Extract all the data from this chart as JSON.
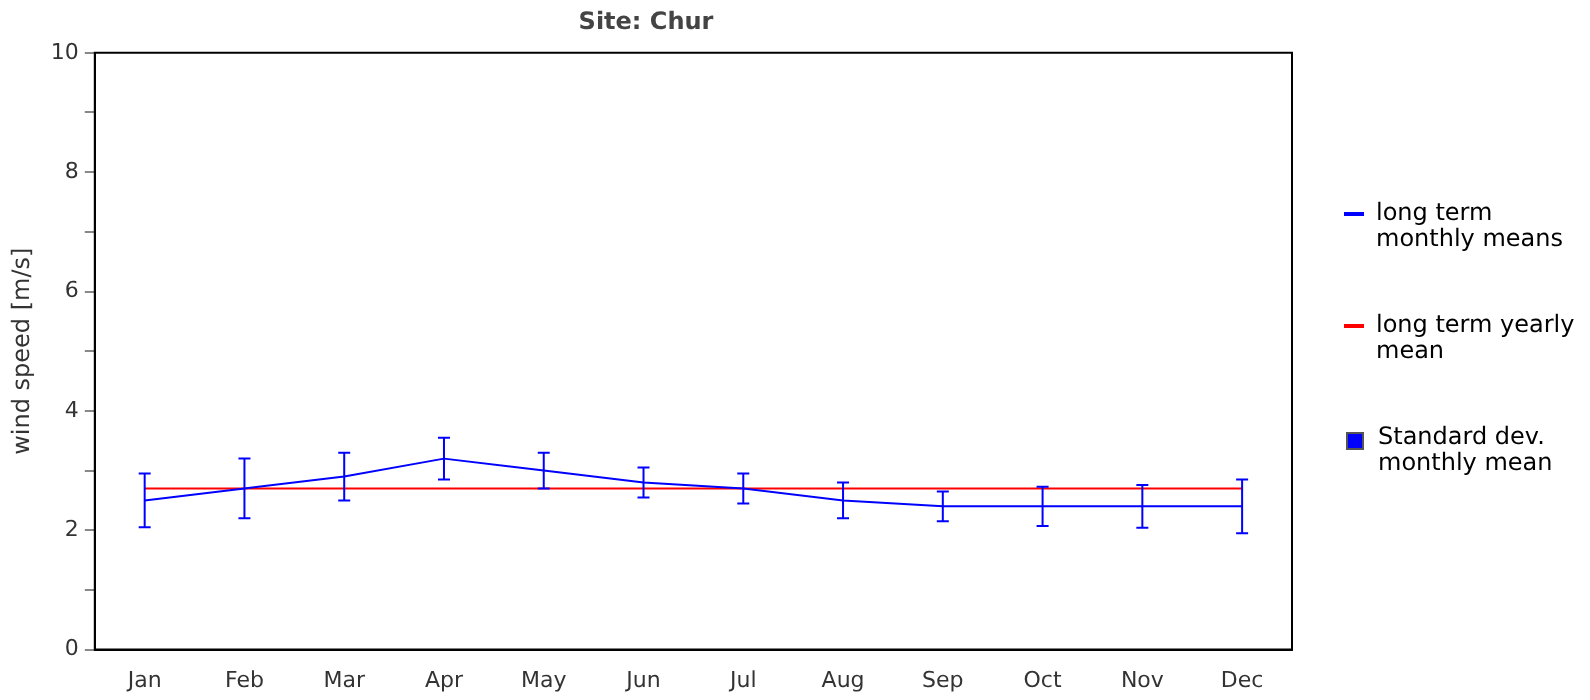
{
  "chart_data": {
    "type": "line",
    "title": "Site: Chur",
    "ylabel": "wind speed [m/s]",
    "categories": [
      "Jan",
      "Feb",
      "Mar",
      "Apr",
      "May",
      "Jun",
      "Jul",
      "Aug",
      "Sep",
      "Oct",
      "Nov",
      "Dec"
    ],
    "series": [
      {
        "name": "long term monthly means",
        "color": "#0000ff",
        "values": [
          2.5,
          2.7,
          2.9,
          3.2,
          3.0,
          2.8,
          2.7,
          2.5,
          2.4,
          2.4,
          2.4,
          2.4
        ],
        "errors": [
          0.45,
          0.5,
          0.4,
          0.35,
          0.3,
          0.25,
          0.25,
          0.3,
          0.25,
          0.33,
          0.36,
          0.45
        ]
      },
      {
        "name": "long term yearly mean",
        "color": "#ff0000",
        "values": [
          2.7,
          2.7,
          2.7,
          2.7,
          2.7,
          2.7,
          2.7,
          2.7,
          2.7,
          2.7,
          2.7,
          2.7
        ]
      }
    ],
    "annotations": [
      "Standard dev. monthly mean"
    ],
    "ylim": [
      0,
      10
    ],
    "yticks": [
      0,
      {
        "value": 1,
        "label": null
      },
      2,
      {
        "value": 3,
        "label": null
      },
      4,
      {
        "value": 5,
        "label": null
      },
      6,
      {
        "value": 7,
        "label": null
      },
      8,
      {
        "value": 9,
        "label": null
      },
      10
    ],
    "grid": false,
    "legend": "right",
    "marker": "none",
    "line_style": "solid"
  }
}
